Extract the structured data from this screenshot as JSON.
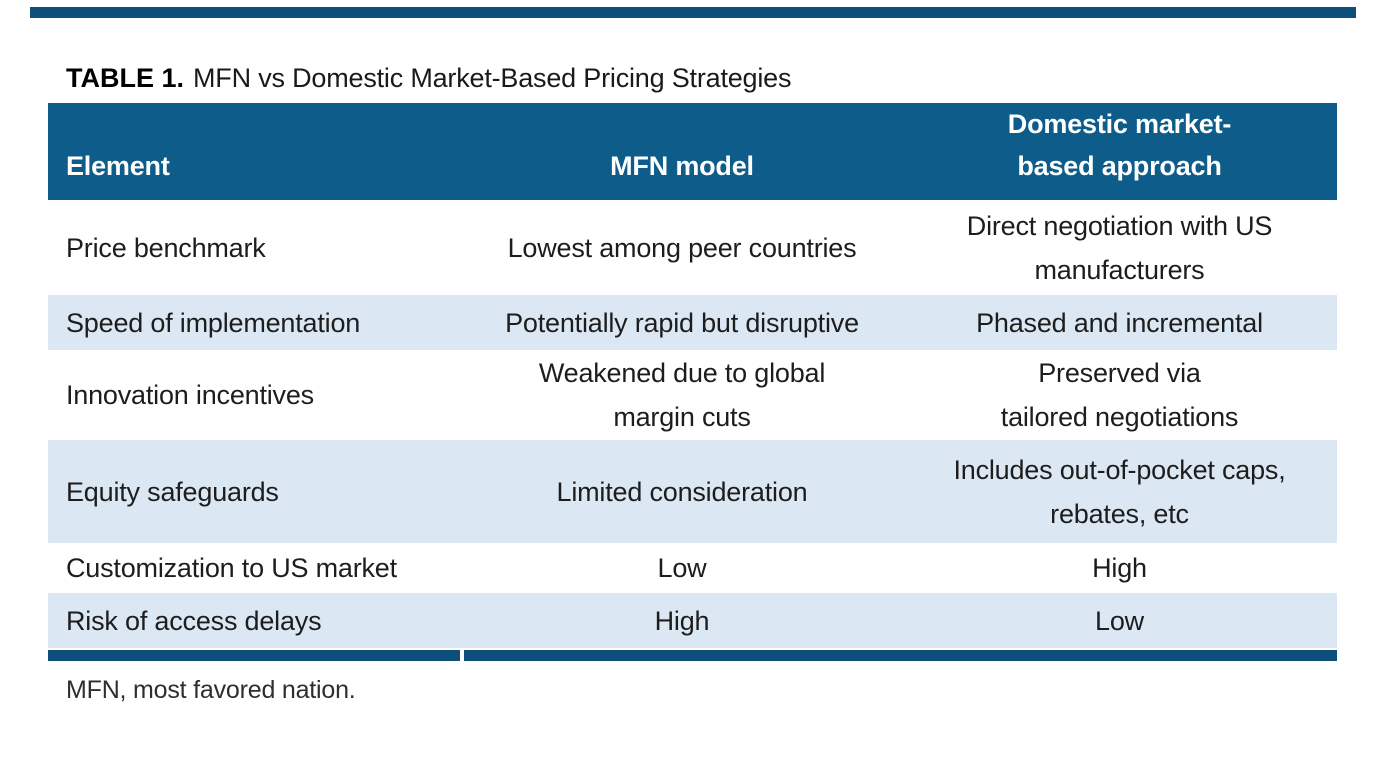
{
  "colors": {
    "header_bg": "#0E5C8A",
    "accent_bar": "#0D4E7B",
    "alt_row_bg": "#DBE8F4",
    "header_text": "#FFFFFF",
    "body_text": "#1D1D1D"
  },
  "title": {
    "label": "TABLE 1.",
    "text": "MFN vs Domestic Market-Based Pricing Strategies"
  },
  "table": {
    "headers": {
      "element": "Element",
      "mfn": "MFN model",
      "domestic_line1": "Domestic market-",
      "domestic_line2": "based approach"
    },
    "rows": [
      {
        "element": "Price benchmark",
        "mfn": [
          "Lowest among peer countries"
        ],
        "domestic": [
          "Direct negotiation with US",
          "manufacturers"
        ]
      },
      {
        "element": "Speed of implementation",
        "mfn": [
          "Potentially rapid but disruptive"
        ],
        "domestic": [
          "Phased and incremental"
        ]
      },
      {
        "element": "Innovation incentives",
        "mfn": [
          "Weakened due to global",
          "margin cuts"
        ],
        "domestic": [
          "Preserved via",
          "tailored negotiations"
        ]
      },
      {
        "element": "Equity safeguards",
        "mfn": [
          "Limited consideration"
        ],
        "domestic": [
          "Includes out-of-pocket caps,",
          "rebates, etc"
        ]
      },
      {
        "element": "Customization to US market",
        "mfn": [
          "Low"
        ],
        "domestic": [
          "High"
        ]
      },
      {
        "element": "Risk of access delays",
        "mfn": [
          "High"
        ],
        "domestic": [
          "Low"
        ]
      }
    ],
    "footnote": "MFN, most favored nation."
  }
}
